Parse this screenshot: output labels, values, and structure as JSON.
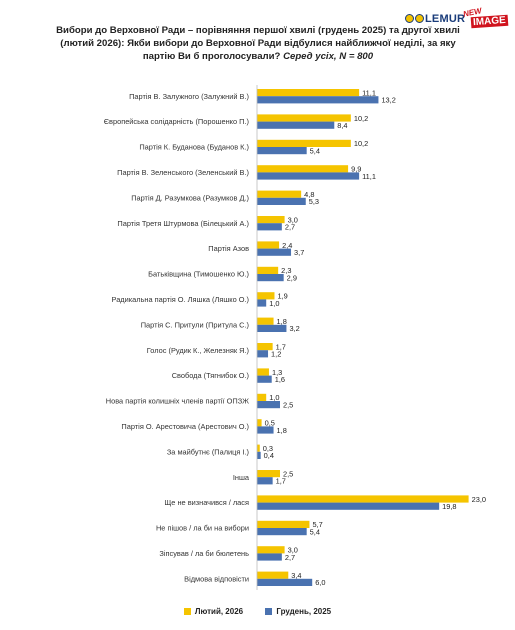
{
  "title": {
    "main": "Вибори до Верховної Ради – порівняння першої хвилі (грудень 2025) та другої хвилі (лютий 2026): Якби вибори до Верховної Ради відбулися найближчої неділі, за яку партію Ви б проголосували?",
    "sub": "Серед усіх, N = 800"
  },
  "logo": {
    "lemur": "LEMUR",
    "new": "NEW",
    "image": "IMAGE"
  },
  "colors": {
    "feb": "#f5c400",
    "dec": "#4a72b0"
  },
  "chart_data": {
    "type": "bar",
    "orientation": "horizontal",
    "categories": [
      "Партія В. Залужного (Залужний В.)",
      "Європейська солідарність (Порошенко П.)",
      "Партія К. Буданова (Буданов К.)",
      "Партія В. Зеленського (Зеленський В.)",
      "Партія Д. Разумкова (Разумков Д.)",
      "Партія Третя Штурмова (Білецький А.)",
      "Партія Азов",
      "Батьківщина (Тимошенко Ю.)",
      "Радикальна партія О. Ляшка (Ляшко О.)",
      "Партія С. Притули (Притула С.)",
      "Голос (Рудик К., Железняк Я.)",
      "Свобода (Тягнибок О.)",
      "Нова партія колишніх членів партії ОПЗЖ",
      "Партія О. Арестовича (Арестович О.)",
      "За майбутнє (Палиця І.)",
      "Інша",
      "Ще не визначився / лася",
      "Не пішов / ла би на вибори",
      "Зіпсував / ла би бюлетень",
      "Відмова відповісти"
    ],
    "series": [
      {
        "name": "Лютий, 2026",
        "values": [
          11.1,
          10.2,
          10.2,
          9.9,
          4.8,
          3.0,
          2.4,
          2.3,
          1.9,
          1.8,
          1.7,
          1.3,
          1.0,
          0.5,
          0.3,
          2.5,
          23.0,
          5.7,
          3.0,
          3.4
        ]
      },
      {
        "name": "Грудень, 2025",
        "values": [
          13.2,
          8.4,
          5.4,
          11.1,
          5.3,
          2.7,
          3.7,
          2.9,
          1.0,
          3.2,
          1.2,
          1.6,
          2.5,
          1.8,
          0.4,
          1.7,
          19.8,
          5.4,
          2.7,
          6.0
        ]
      }
    ],
    "value_labels": {
      "feb": [
        "11,1",
        "10,2",
        "10,2",
        "9,9",
        "4,8",
        "3,0",
        "2,4",
        "2,3",
        "1,9",
        "1,8",
        "1,7",
        "1,3",
        "1,0",
        "0,5",
        "0,3",
        "2,5",
        "23,0",
        "5,7",
        "3,0",
        "3,4"
      ],
      "dec": [
        "13,2",
        "8,4",
        "5,4",
        "11,1",
        "5,3",
        "2,7",
        "3,7",
        "2,9",
        "1,0",
        "3,2",
        "1,2",
        "1,6",
        "2,5",
        "1,8",
        "0,4",
        "1,7",
        "19,8",
        "5,4",
        "2,7",
        "6,0"
      ]
    },
    "legend_position": "bottom",
    "grid": false
  }
}
